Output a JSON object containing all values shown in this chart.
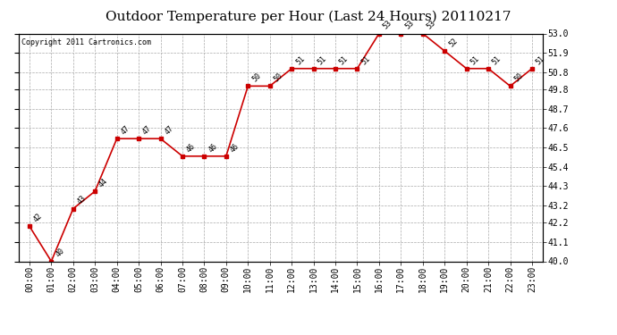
{
  "title": "Outdoor Temperature per Hour (Last 24 Hours) 20110217",
  "copyright": "Copyright 2011 Cartronics.com",
  "hours": [
    "00:00",
    "01:00",
    "02:00",
    "03:00",
    "04:00",
    "05:00",
    "06:00",
    "07:00",
    "08:00",
    "09:00",
    "10:00",
    "11:00",
    "12:00",
    "13:00",
    "14:00",
    "15:00",
    "16:00",
    "17:00",
    "18:00",
    "19:00",
    "20:00",
    "21:00",
    "22:00",
    "23:00"
  ],
  "temperatures": [
    42,
    40,
    43,
    44,
    47,
    47,
    47,
    46,
    46,
    46,
    50,
    50,
    51,
    51,
    51,
    51,
    53,
    53,
    53,
    52,
    51,
    51,
    50,
    51
  ],
  "ylim_min": 40.0,
  "ylim_max": 53.0,
  "yticks": [
    40.0,
    41.1,
    42.2,
    43.2,
    44.3,
    45.4,
    46.5,
    47.6,
    48.7,
    49.8,
    50.8,
    51.9,
    53.0
  ],
  "ytick_labels": [
    "40.0",
    "41.1",
    "42.2",
    "43.2",
    "44.3",
    "45.4",
    "46.5",
    "47.6",
    "48.7",
    "49.8",
    "50.8",
    "51.9",
    "53.0"
  ],
  "line_color": "#cc0000",
  "marker_color": "#cc0000",
  "bg_color": "#ffffff",
  "grid_color": "#aaaaaa",
  "title_fontsize": 11,
  "tick_fontsize": 7,
  "annot_fontsize": 6,
  "copyright_fontsize": 6
}
